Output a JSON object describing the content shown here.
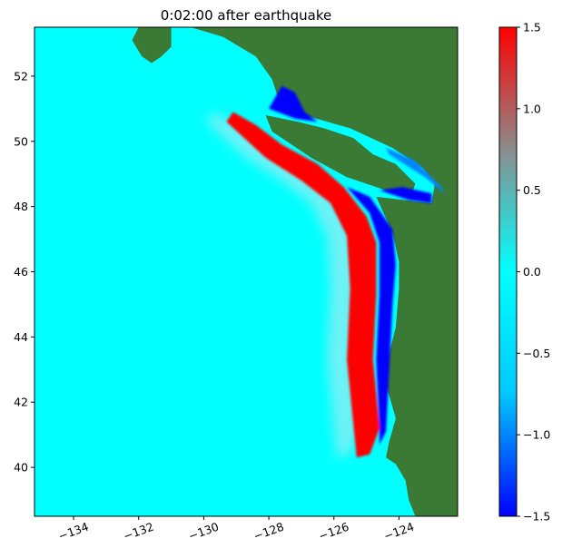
{
  "chart_data": {
    "type": "heatmap",
    "title": "0:02:00 after earthquake",
    "xlabel": "",
    "ylabel": "",
    "xlim": [
      -135.2,
      -122.2
    ],
    "ylim": [
      38.5,
      53.5
    ],
    "xticks": [
      -134,
      -132,
      -130,
      -128,
      -126,
      -124
    ],
    "xtick_labels": [
      "−134",
      "−132",
      "−130",
      "−128",
      "−126",
      "−124"
    ],
    "yticks": [
      40,
      42,
      44,
      46,
      48,
      50,
      52
    ],
    "ytick_labels": [
      "40",
      "42",
      "44",
      "46",
      "48",
      "50",
      "52"
    ],
    "grid": false,
    "colorbar": {
      "vmin": -1.5,
      "vmax": 1.5,
      "ticks": [
        -1.5,
        -1.0,
        -0.5,
        0.0,
        0.5,
        1.0,
        1.5
      ],
      "tick_labels": [
        "−1.5",
        "−1.0",
        "−0.5",
        "0.0",
        "0.5",
        "1.0",
        "1.5"
      ],
      "colors": [
        "#0000ff",
        "#00c8ff",
        "#00ffff",
        "#8c8c8c",
        "#ff0000"
      ]
    },
    "colors": {
      "land": "#3a7a35",
      "ocean": "#00ffff",
      "positive_wave": "#ff0000",
      "negative_wave": "#0000ff"
    },
    "features": [
      {
        "name": "positive wave crest",
        "value": 1.5,
        "polygon": [
          [
            -129.3,
            50.6
          ],
          [
            -129.1,
            50.9
          ],
          [
            -128.4,
            50.5
          ],
          [
            -127.6,
            49.9
          ],
          [
            -126.5,
            49.3
          ],
          [
            -125.7,
            48.6
          ],
          [
            -125.0,
            47.7
          ],
          [
            -124.7,
            46.9
          ],
          [
            -124.7,
            45.3
          ],
          [
            -124.8,
            43.3
          ],
          [
            -124.6,
            41.2
          ],
          [
            -124.9,
            40.4
          ],
          [
            -125.3,
            40.3
          ],
          [
            -125.4,
            41.3
          ],
          [
            -125.6,
            43.3
          ],
          [
            -125.5,
            45.5
          ],
          [
            -125.6,
            47.1
          ],
          [
            -126.1,
            48.1
          ],
          [
            -127.0,
            48.8
          ],
          [
            -128.1,
            49.5
          ],
          [
            -129.3,
            50.6
          ]
        ]
      },
      {
        "name": "negative wave trough",
        "value": -1.5,
        "polygon": [
          [
            -125.6,
            48.6
          ],
          [
            -124.9,
            48.3
          ],
          [
            -124.2,
            47.3
          ],
          [
            -124.1,
            46.2
          ],
          [
            -124.2,
            45.0
          ],
          [
            -124.3,
            43.0
          ],
          [
            -124.4,
            41.1
          ],
          [
            -124.6,
            40.7
          ],
          [
            -124.6,
            41.2
          ],
          [
            -124.7,
            43.3
          ],
          [
            -124.6,
            45.3
          ],
          [
            -124.6,
            46.9
          ],
          [
            -124.9,
            47.8
          ],
          [
            -125.6,
            48.6
          ]
        ]
      },
      {
        "name": "strait trough",
        "value": -1.5,
        "polygon": [
          [
            -124.6,
            48.5
          ],
          [
            -123.7,
            48.2
          ],
          [
            -123.0,
            48.1
          ],
          [
            -123.0,
            48.4
          ],
          [
            -123.9,
            48.6
          ],
          [
            -124.6,
            48.5
          ]
        ]
      },
      {
        "name": "sound trough",
        "value": -1.0,
        "polygon": [
          [
            -124.4,
            49.8
          ],
          [
            -123.5,
            49.4
          ],
          [
            -122.7,
            48.6
          ],
          [
            -122.6,
            48.4
          ],
          [
            -123.2,
            48.9
          ],
          [
            -124.3,
            49.6
          ],
          [
            -124.4,
            49.8
          ]
        ]
      },
      {
        "name": "northern trough",
        "value": -1.5,
        "polygon": [
          [
            -128.0,
            51.0
          ],
          [
            -127.6,
            51.7
          ],
          [
            -127.2,
            51.5
          ],
          [
            -126.9,
            50.9
          ],
          [
            -126.5,
            50.6
          ],
          [
            -127.2,
            50.7
          ],
          [
            -128.0,
            51.0
          ]
        ]
      }
    ]
  }
}
